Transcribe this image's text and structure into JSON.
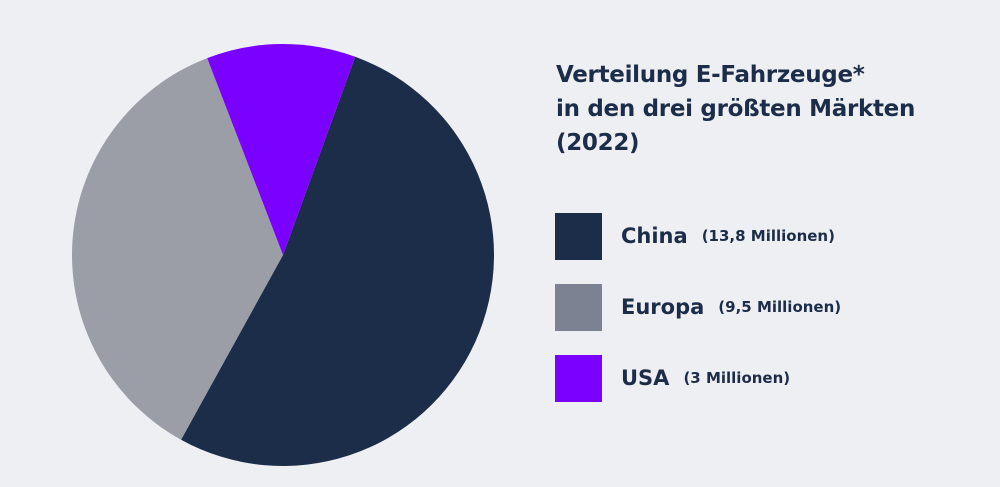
{
  "chart_data": {
    "type": "pie",
    "title": "Verteilung E-Fahrzeuge* in den drei größten Märkten (2022)",
    "title_lines": [
      "Verteilung E-Fahrzeuge*",
      "in den drei größten Märkten",
      "(2022)"
    ],
    "unit": "Millionen",
    "legend_position": "right",
    "slices": [
      {
        "label": "China",
        "value": 13.8,
        "value_label": "(13,8 Millionen)",
        "color": "#1c2d4a"
      },
      {
        "label": "Europa",
        "value": 9.5,
        "value_label": "(9,5 Millionen)",
        "color": "#9b9ea7",
        "legend_color": "#7c8291"
      },
      {
        "label": "USA",
        "value": 3,
        "value_label": "(3 Millionen)",
        "color": "#7a00ff"
      }
    ]
  }
}
